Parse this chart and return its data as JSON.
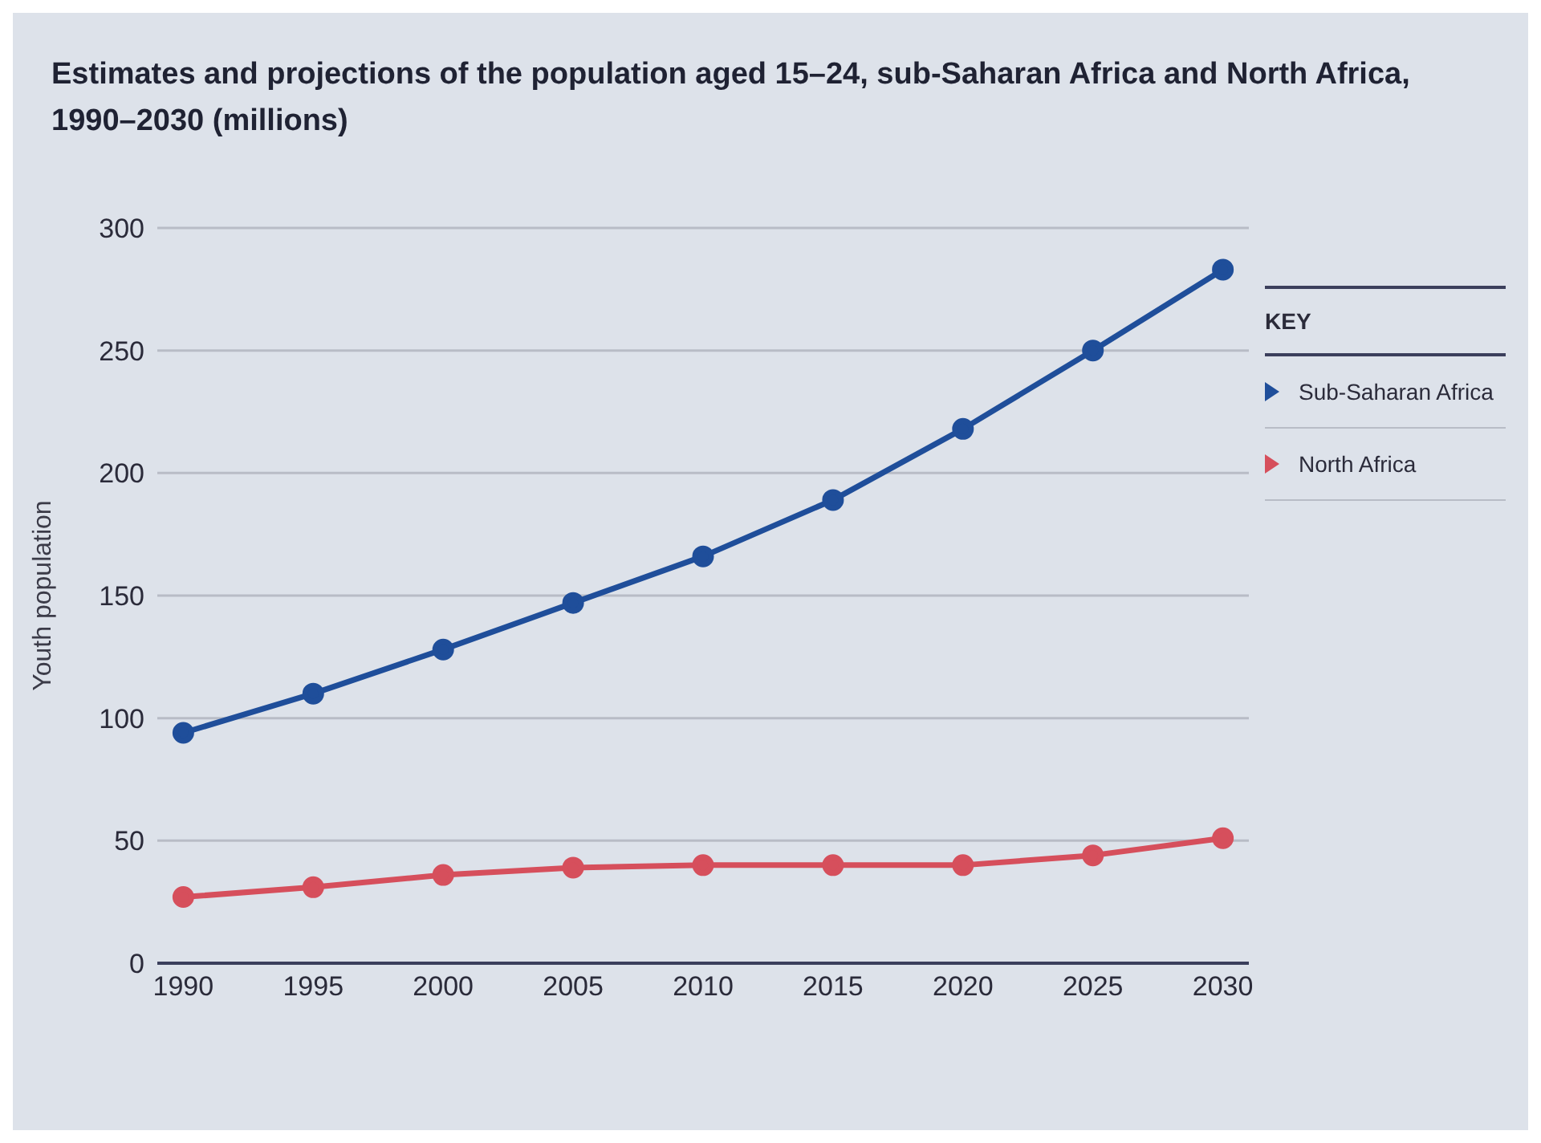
{
  "chart_data": {
    "type": "line",
    "title": "Estimates and projections of the population aged 15–24, sub-Saharan Africa and North Africa, 1990–2030 (millions)",
    "ylabel": "Youth population",
    "legend_title": "KEY",
    "legend": "right",
    "grid": "y",
    "marker": "circle",
    "line_style": "solid",
    "x": [
      1990,
      1995,
      2000,
      2005,
      2010,
      2015,
      2020,
      2025,
      2030
    ],
    "xlim": [
      1989,
      2031
    ],
    "xticks": [
      1990,
      1995,
      2000,
      2005,
      2010,
      2015,
      2020,
      2025,
      2030
    ],
    "ylim": [
      0,
      300
    ],
    "yticks": [
      0,
      50,
      100,
      150,
      200,
      250,
      300
    ],
    "series": [
      {
        "name": "Sub-Saharan Africa",
        "color": "#1f4e9a",
        "values": [
          94,
          110,
          128,
          147,
          166,
          189,
          218,
          250,
          283
        ]
      },
      {
        "name": "North Africa",
        "color": "#d64f5c",
        "values": [
          27,
          31,
          36,
          39,
          40,
          40,
          40,
          44,
          51
        ]
      }
    ]
  }
}
